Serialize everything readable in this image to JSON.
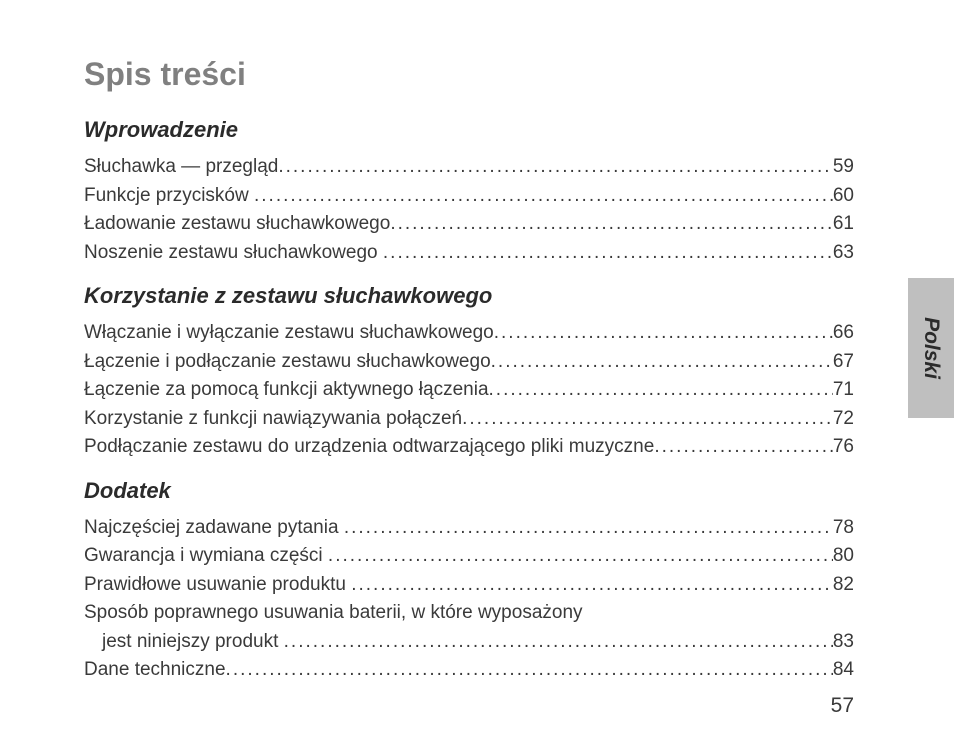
{
  "title": "Spis treści",
  "side_tab": "Polski",
  "page_number": "57",
  "sections": [
    {
      "heading": "Wprowadzenie",
      "entries": [
        {
          "label": "Słuchawka — przegląd",
          "page": "59"
        },
        {
          "label": "Funkcje przycisków ",
          "page": "60"
        },
        {
          "label": "Ładowanie zestawu słuchawkowego",
          "page": "61"
        },
        {
          "label": "Noszenie zestawu słuchawkowego ",
          "page": "63"
        }
      ]
    },
    {
      "heading": "Korzystanie z zestawu słuchawkowego",
      "entries": [
        {
          "label": "Włączanie i wyłączanie zestawu słuchawkowego",
          "page": "66"
        },
        {
          "label": "Łączenie i podłączanie zestawu słuchawkowego",
          "page": "67"
        },
        {
          "label": "Łączenie za pomocą funkcji aktywnego łączenia",
          "page": "71"
        },
        {
          "label": "Korzystanie z funkcji nawiązywania połączeń",
          "page": "72"
        },
        {
          "label": "Podłączanie zestawu do urządzenia odtwarzającego pliki muzyczne",
          "page": "76"
        }
      ]
    },
    {
      "heading": "Dodatek",
      "entries": [
        {
          "label": "Najczęściej zadawane pytania ",
          "page": "78"
        },
        {
          "label": "Gwarancja i wymiana części ",
          "page": "80"
        },
        {
          "label": "Prawidłowe usuwanie produktu ",
          "page": "82"
        },
        {
          "label_line1": "Sposób poprawnego usuwania baterii, w które wyposażony",
          "label_line2": "jest niniejszy produkt ",
          "page": "83",
          "multiline": true
        },
        {
          "label": "Dane techniczne",
          "page": "84"
        }
      ]
    }
  ]
}
